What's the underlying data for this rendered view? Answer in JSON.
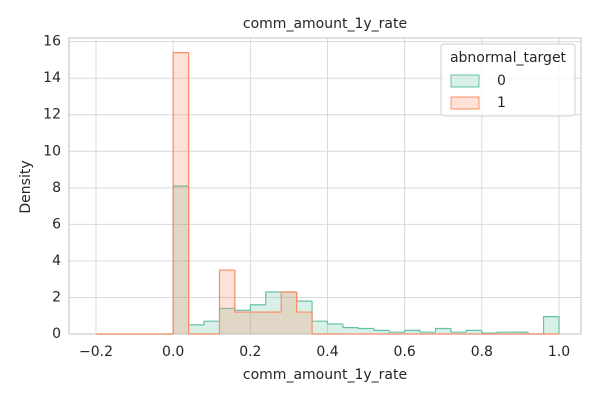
{
  "chart_data": {
    "type": "histogram",
    "title": "comm_amount_1y_rate",
    "x_label": "comm_amount_1y_rate",
    "y_label": "Density",
    "bins": [
      -0.2,
      -0.16,
      -0.12,
      -0.08,
      -0.04,
      0,
      0.04,
      0.08,
      0.12,
      0.16,
      0.2,
      0.24,
      0.28,
      0.32,
      0.36,
      0.4,
      0.44,
      0.48,
      0.52,
      0.56,
      0.6,
      0.64,
      0.68,
      0.72,
      0.76,
      0.8,
      0.84,
      0.88,
      0.92,
      0.96,
      1.0
    ],
    "series": [
      {
        "name": "0",
        "color": "#66c2a5",
        "values": [
          0,
          0,
          0,
          0,
          0,
          8.1,
          0.5,
          0.7,
          1.4,
          1.3,
          1.6,
          2.3,
          2.3,
          1.8,
          0.7,
          0.55,
          0.35,
          0.3,
          0.2,
          0.1,
          0.2,
          0.1,
          0.3,
          0.1,
          0.2,
          0.05,
          0.1,
          0.1,
          0,
          0.95
        ]
      },
      {
        "name": "1",
        "color": "#fc8d62",
        "values": [
          0,
          0,
          0,
          0,
          0,
          15.4,
          0,
          0,
          3.5,
          1.2,
          1.2,
          1.2,
          2.3,
          1.2,
          0,
          0,
          0,
          0,
          0,
          0,
          0,
          0,
          0,
          0,
          0,
          0,
          0,
          0,
          0,
          0
        ]
      }
    ],
    "legend_title": "abnormal_target",
    "legend": "upper right",
    "grid": true,
    "xlim": [
      -0.27,
      1.057
    ],
    "ylim": [
      0,
      16.2
    ],
    "xticks": [
      {
        "value": -0.2,
        "label": "−0.2"
      },
      {
        "value": 0,
        "label": "0.0"
      },
      0.2,
      0.4,
      0.6,
      0.8,
      {
        "value": 1.0,
        "label": "1.0"
      }
    ],
    "yticks": [
      0,
      2,
      4,
      6,
      8,
      10,
      12,
      14,
      16
    ]
  }
}
